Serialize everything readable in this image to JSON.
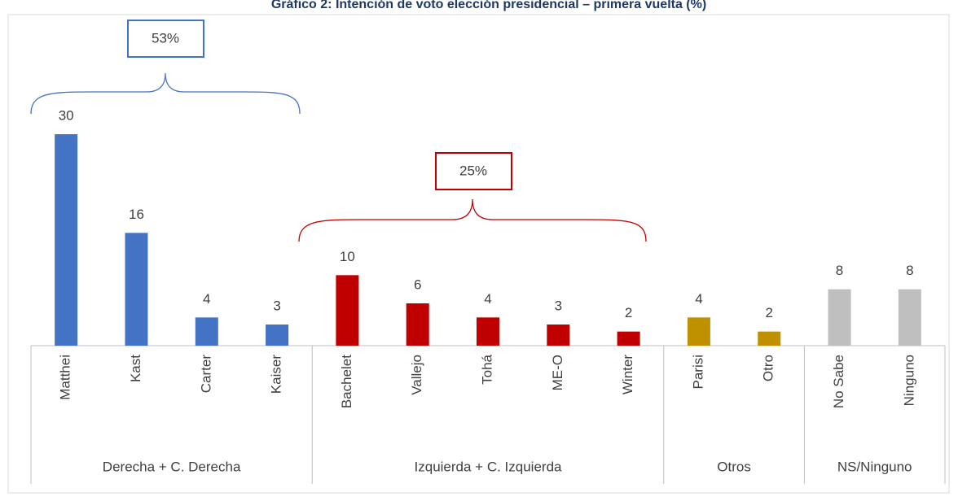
{
  "chart_data": {
    "type": "bar",
    "title": "Gráfico 2: Intención de voto elección presidencial – primera vuelta (%)",
    "ylim": [
      0,
      30
    ],
    "groups": [
      {
        "name": "Derecha + C. Derecha",
        "color": "#4472c4",
        "categories": [
          "Matthei",
          "Kast",
          "Carter",
          "Kaiser"
        ],
        "values": [
          30,
          16,
          4,
          3
        ]
      },
      {
        "name": "Izquierda + C. Izquierda",
        "color": "#c00000",
        "categories": [
          "Bachelet",
          "Vallejo",
          "Tohá",
          "ME-O",
          "Winter"
        ],
        "values": [
          10,
          6,
          4,
          3,
          2
        ]
      },
      {
        "name": "Otros",
        "color": "#bf9000",
        "categories": [
          "Parisi",
          "Otro"
        ],
        "values": [
          4,
          2
        ]
      },
      {
        "name": "NS/Ninguno",
        "color": "#bfbfbf",
        "categories": [
          "No Sabe",
          "Ninguno"
        ],
        "values": [
          8,
          8
        ]
      }
    ],
    "annotations": [
      "53%",
      "25%"
    ]
  }
}
